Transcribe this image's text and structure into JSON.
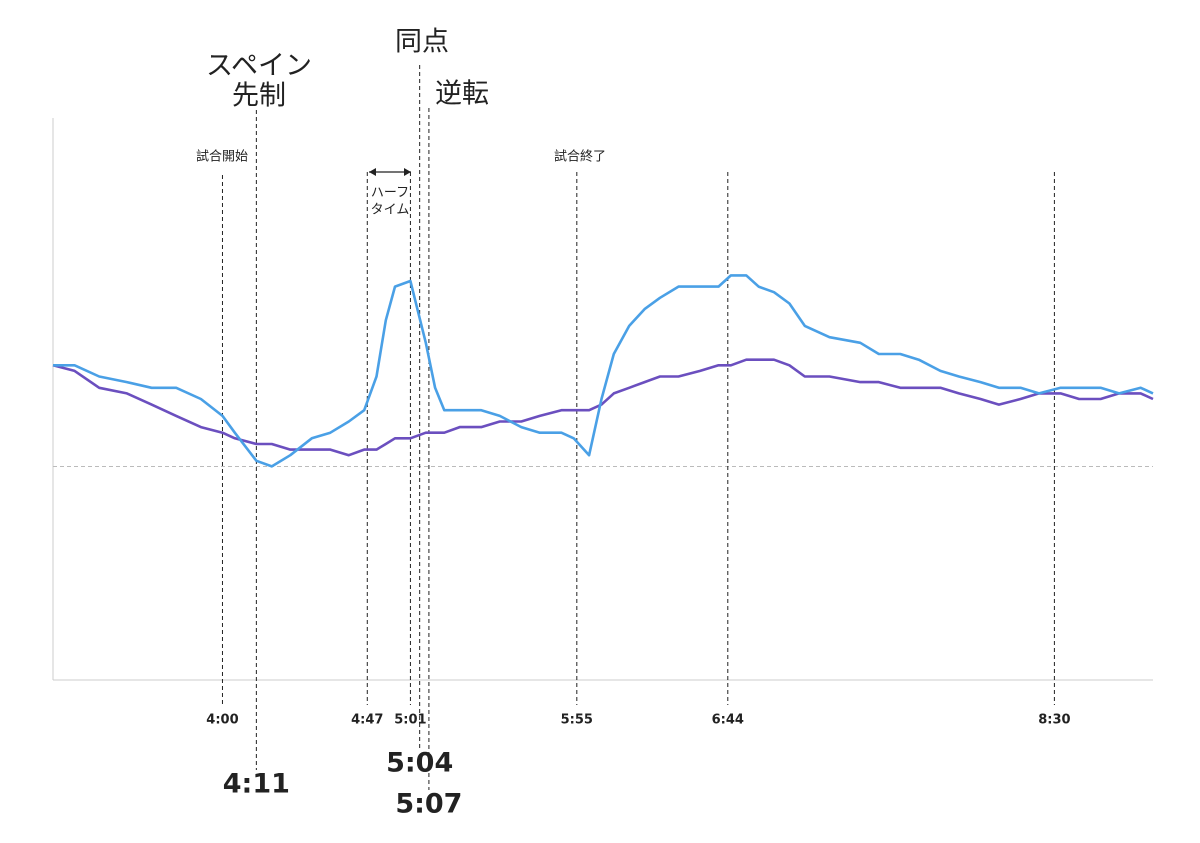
{
  "chart_data": {
    "type": "line",
    "x": [
      185,
      192,
      200,
      209,
      217,
      225,
      233,
      240,
      244,
      251,
      256,
      262,
      269,
      275,
      281,
      286,
      290,
      293,
      296,
      301,
      306,
      309,
      312,
      317,
      324,
      330,
      337,
      343,
      350,
      354,
      359,
      363,
      367,
      372,
      377,
      382,
      388,
      395,
      401,
      405,
      410,
      414,
      419,
      424,
      429,
      437,
      447,
      453,
      460,
      466,
      473,
      479,
      486,
      492,
      499,
      505,
      512,
      518,
      525,
      531,
      538,
      542
    ],
    "series": [
      {
        "color": "#4aa0e6",
        "values": [
          56,
          56,
          54,
          53,
          52,
          52,
          50,
          47,
          44,
          39,
          38,
          40,
          43,
          44,
          46,
          48,
          54,
          64,
          70,
          71,
          60,
          52,
          48,
          48,
          48,
          47,
          45,
          44,
          44,
          43,
          40,
          50,
          58,
          63,
          66,
          68,
          70,
          70,
          70,
          72,
          72,
          70,
          69,
          67,
          63,
          61,
          60,
          58,
          58,
          57,
          55,
          54,
          53,
          52,
          52,
          51,
          52,
          52,
          52,
          51,
          52,
          51
        ]
      },
      {
        "color": "#6b4fbf",
        "values": [
          56,
          55,
          52,
          51,
          49,
          47,
          45,
          44,
          43,
          42,
          42,
          41,
          41,
          41,
          40,
          41,
          41,
          42,
          43,
          43,
          44,
          44,
          44,
          45,
          45,
          46,
          46,
          47,
          48,
          48,
          48,
          49,
          51,
          52,
          53,
          54,
          54,
          55,
          56,
          56,
          57,
          57,
          57,
          56,
          54,
          54,
          53,
          53,
          52,
          52,
          52,
          51,
          50,
          49,
          50,
          51,
          51,
          50,
          50,
          51,
          51,
          50
        ]
      }
    ],
    "xlim": [
      185,
      542
    ],
    "ylim": [
      0,
      100
    ],
    "reference_line": 38,
    "xticks": [
      {
        "value": 240,
        "label": "4:00"
      },
      {
        "value": 251,
        "label": "4:11"
      },
      {
        "value": 287,
        "label": "4:47"
      },
      {
        "value": 301,
        "label": "5:01"
      },
      {
        "value": 304,
        "label": "5:04"
      },
      {
        "value": 307,
        "label": "5:07"
      },
      {
        "value": 355,
        "label": "5:55"
      },
      {
        "value": 404,
        "label": "6:44"
      },
      {
        "value": 510,
        "label": "8:30"
      }
    ],
    "annotations": [
      [
        "試合開始"
      ],
      [
        "スペイン",
        "先制"
      ],
      [
        "ハーフ",
        "タイム"
      ],
      [
        "同点"
      ],
      [
        "逆転"
      ],
      [
        "試合終了"
      ]
    ]
  }
}
